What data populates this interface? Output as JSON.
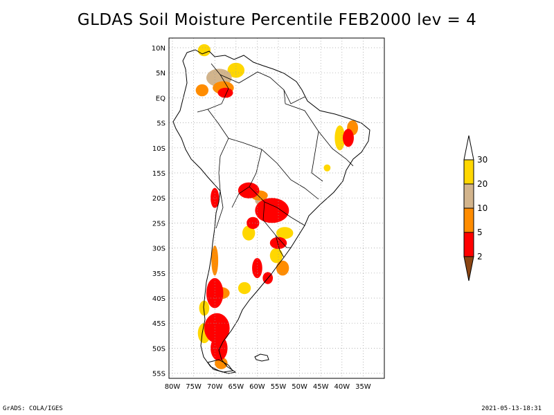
{
  "title": "GLDAS Soil Moisture Percentile FEB2000 lev = 4",
  "footer": {
    "left": "GrADS: COLA/IGES",
    "right": "2021-05-13-18:31"
  },
  "map": {
    "lon_range": [
      -81,
      -31
    ],
    "lat_range": [
      -56,
      12
    ],
    "lat_ticks": [
      "10N",
      "5N",
      "EQ",
      "5S",
      "10S",
      "15S",
      "20S",
      "25S",
      "30S",
      "35S",
      "40S",
      "45S",
      "50S",
      "55S"
    ],
    "lon_ticks": [
      "80W",
      "75W",
      "70W",
      "65W",
      "60W",
      "55W",
      "50W",
      "45W",
      "40W",
      "35W"
    ],
    "grid": true
  },
  "colorbar": {
    "labels": [
      "30",
      "20",
      "10",
      "5",
      "2"
    ],
    "colors": {
      "above_30": "#ffffff",
      "20_30": "#ffd700",
      "10_20": "#d2b48c",
      "5_10": "#ff8c00",
      "2_5": "#ff0000",
      "below_2": "#8b4513"
    }
  },
  "chart_data": {
    "type": "heatmap",
    "title": "GLDAS Soil Moisture Percentile FEB2000 lev = 4",
    "xlabel": "",
    "ylabel": "",
    "x_range": [
      -81,
      -31
    ],
    "y_range": [
      -56,
      12
    ],
    "legend_levels": [
      2,
      5,
      10,
      20,
      30
    ],
    "regions": [
      {
        "category": "20-30",
        "lon": -72.5,
        "lat": 9.5,
        "rx": 1.5,
        "ry": 1.2
      },
      {
        "category": "10-20",
        "lon": -69,
        "lat": 4,
        "rx": 3,
        "ry": 1.8
      },
      {
        "category": "20-30",
        "lon": -65,
        "lat": 5.5,
        "rx": 2,
        "ry": 1.5
      },
      {
        "category": "5-10",
        "lon": -68,
        "lat": 2,
        "rx": 2.5,
        "ry": 1.3
      },
      {
        "category": "2-5",
        "lon": -67.5,
        "lat": 1,
        "rx": 1.8,
        "ry": 1
      },
      {
        "category": "5-10",
        "lon": -73,
        "lat": 1.5,
        "rx": 1.5,
        "ry": 1.2
      },
      {
        "category": "5-10",
        "lon": -37.5,
        "lat": -6,
        "rx": 1.3,
        "ry": 1.5
      },
      {
        "category": "2-5",
        "lon": -38.5,
        "lat": -8,
        "rx": 1.3,
        "ry": 1.8
      },
      {
        "category": "20-30",
        "lon": -40.5,
        "lat": -8,
        "rx": 1.2,
        "ry": 2.5
      },
      {
        "category": "20-30",
        "lon": -43.5,
        "lat": -14,
        "rx": 0.8,
        "ry": 0.7
      },
      {
        "category": "2-5",
        "lon": -70,
        "lat": -20,
        "rx": 1,
        "ry": 2
      },
      {
        "category": "2-5",
        "lon": -62,
        "lat": -18.5,
        "rx": 2.5,
        "ry": 1.6
      },
      {
        "category": "5-10",
        "lon": -59.5,
        "lat": -19.5,
        "rx": 2,
        "ry": 1
      },
      {
        "category": "2-5",
        "lon": -56.5,
        "lat": -22.5,
        "rx": 4,
        "ry": 2.5
      },
      {
        "category": "10-20",
        "lon": -59,
        "lat": -20.5,
        "rx": 1.5,
        "ry": 1
      },
      {
        "category": "20-30",
        "lon": -62,
        "lat": -27,
        "rx": 1.5,
        "ry": 1.5
      },
      {
        "category": "2-5",
        "lon": -61,
        "lat": -25,
        "rx": 1.5,
        "ry": 1.2
      },
      {
        "category": "20-30",
        "lon": -53.5,
        "lat": -27,
        "rx": 2,
        "ry": 1.2
      },
      {
        "category": "2-5",
        "lon": -55,
        "lat": -29,
        "rx": 2,
        "ry": 1.2
      },
      {
        "category": "20-30",
        "lon": -55.5,
        "lat": -31.5,
        "rx": 1.5,
        "ry": 1.5
      },
      {
        "category": "5-10",
        "lon": -54,
        "lat": -34,
        "rx": 1.5,
        "ry": 1.5
      },
      {
        "category": "2-5",
        "lon": -60,
        "lat": -34,
        "rx": 1.2,
        "ry": 2
      },
      {
        "category": "2-5",
        "lon": -57.5,
        "lat": -36,
        "rx": 1.2,
        "ry": 1.2
      },
      {
        "category": "5-10",
        "lon": -70,
        "lat": -32.5,
        "rx": 0.8,
        "ry": 3
      },
      {
        "category": "2-5",
        "lon": -70,
        "lat": -39,
        "rx": 2,
        "ry": 3
      },
      {
        "category": "20-30",
        "lon": -72.5,
        "lat": -42,
        "rx": 1.2,
        "ry": 1.5
      },
      {
        "category": "5-10",
        "lon": -68.5,
        "lat": -39,
        "rx": 2,
        "ry": 1.2
      },
      {
        "category": "20-30",
        "lon": -63,
        "lat": -38,
        "rx": 1.5,
        "ry": 1.2
      },
      {
        "category": "2-5",
        "lon": -69.5,
        "lat": -46,
        "rx": 3,
        "ry": 3
      },
      {
        "category": "2-5",
        "lon": -69,
        "lat": -50,
        "rx": 2,
        "ry": 2.5
      },
      {
        "category": "20-30",
        "lon": -72.5,
        "lat": -47,
        "rx": 1.5,
        "ry": 2
      },
      {
        "category": "5-10",
        "lon": -68.5,
        "lat": -53,
        "rx": 1.5,
        "ry": 1.2
      }
    ]
  }
}
